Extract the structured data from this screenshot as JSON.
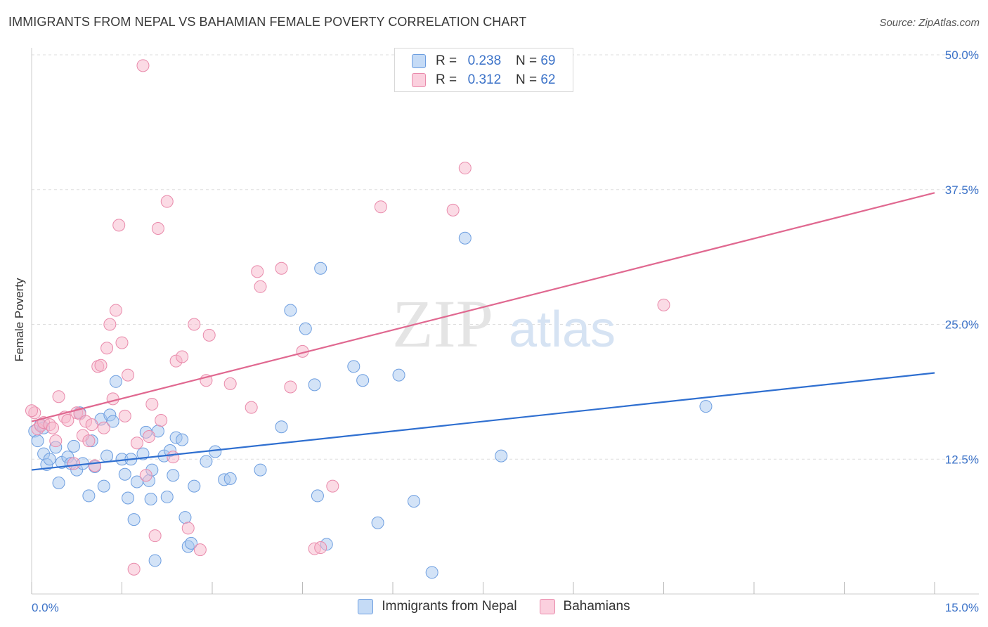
{
  "title": "IMMIGRANTS FROM NEPAL VS BAHAMIAN FEMALE POVERTY CORRELATION CHART",
  "source": "Source: ZipAtlas.com",
  "watermark": {
    "zip": "ZIP",
    "atlas": "atlas"
  },
  "legend_top": [
    {
      "r_label": "R =",
      "r_value": "0.238",
      "n_label": "N =",
      "n_value": "69",
      "color": "#a8c8f0"
    },
    {
      "r_label": "R =",
      "r_value": "0.312",
      "n_label": "N =",
      "n_value": "62",
      "color": "#f7b8cc"
    }
  ],
  "chart_data": {
    "type": "scatter",
    "title": "IMMIGRANTS FROM NEPAL VS BAHAMIAN FEMALE POVERTY CORRELATION CHART",
    "xlabel": "",
    "ylabel": "Female Poverty",
    "xlim": [
      0,
      15
    ],
    "ylim": [
      0,
      50
    ],
    "x_tick_labels": [
      "0.0%",
      "15.0%"
    ],
    "y_ticks": [
      12.5,
      25.0,
      37.5,
      50.0
    ],
    "y_tick_labels": [
      "12.5%",
      "25.0%",
      "37.5%",
      "50.0%"
    ],
    "grid": true,
    "series": [
      {
        "name": "Immigrants from Nepal",
        "color": "#a8c8f0",
        "stroke": "#6d9ee0",
        "line_color": "#2f6fd0",
        "trend": [
          [
            0,
            11.5
          ],
          [
            15,
            20.5
          ]
        ],
        "points": [
          [
            0.05,
            15.1
          ],
          [
            0.1,
            14.2
          ],
          [
            0.15,
            15.7
          ],
          [
            0.2,
            15.4
          ],
          [
            0.2,
            13.0
          ],
          [
            0.25,
            12.0
          ],
          [
            0.3,
            12.5
          ],
          [
            0.4,
            13.6
          ],
          [
            0.45,
            10.3
          ],
          [
            0.5,
            12.2
          ],
          [
            0.6,
            12.7
          ],
          [
            0.65,
            12.1
          ],
          [
            0.7,
            13.7
          ],
          [
            0.75,
            11.5
          ],
          [
            0.8,
            16.8
          ],
          [
            0.85,
            12.1
          ],
          [
            0.95,
            9.1
          ],
          [
            1.0,
            14.2
          ],
          [
            1.05,
            11.8
          ],
          [
            1.15,
            16.2
          ],
          [
            1.2,
            10.0
          ],
          [
            1.25,
            12.8
          ],
          [
            1.3,
            16.6
          ],
          [
            1.35,
            16.0
          ],
          [
            1.4,
            19.7
          ],
          [
            1.5,
            12.5
          ],
          [
            1.55,
            11.1
          ],
          [
            1.6,
            8.9
          ],
          [
            1.65,
            12.5
          ],
          [
            1.7,
            6.9
          ],
          [
            1.75,
            10.4
          ],
          [
            1.85,
            13.0
          ],
          [
            1.9,
            15.0
          ],
          [
            1.95,
            10.5
          ],
          [
            1.98,
            8.8
          ],
          [
            2.0,
            11.5
          ],
          [
            2.05,
            3.1
          ],
          [
            2.1,
            15.1
          ],
          [
            2.2,
            12.8
          ],
          [
            2.25,
            9.0
          ],
          [
            2.3,
            13.3
          ],
          [
            2.35,
            11.0
          ],
          [
            2.4,
            14.5
          ],
          [
            2.5,
            14.3
          ],
          [
            2.55,
            7.1
          ],
          [
            2.6,
            4.4
          ],
          [
            2.65,
            4.7
          ],
          [
            2.7,
            10.0
          ],
          [
            2.9,
            12.3
          ],
          [
            3.05,
            13.2
          ],
          [
            3.2,
            10.6
          ],
          [
            3.3,
            10.7
          ],
          [
            3.8,
            11.5
          ],
          [
            4.15,
            15.5
          ],
          [
            4.3,
            26.3
          ],
          [
            4.55,
            24.6
          ],
          [
            4.7,
            19.4
          ],
          [
            4.75,
            9.1
          ],
          [
            4.8,
            30.2
          ],
          [
            4.9,
            4.6
          ],
          [
            5.35,
            21.1
          ],
          [
            5.5,
            19.8
          ],
          [
            5.75,
            6.6
          ],
          [
            6.1,
            20.3
          ],
          [
            6.35,
            8.6
          ],
          [
            6.65,
            2.0
          ],
          [
            7.2,
            33.0
          ],
          [
            7.8,
            12.8
          ],
          [
            11.2,
            17.4
          ]
        ]
      },
      {
        "name": "Bahamians",
        "color": "#f7b8cc",
        "stroke": "#e98aab",
        "line_color": "#e06890",
        "trend": [
          [
            0,
            16.0
          ],
          [
            15,
            37.2
          ]
        ],
        "points": [
          [
            0.05,
            16.8
          ],
          [
            0.1,
            15.3
          ],
          [
            0.15,
            15.6
          ],
          [
            0.2,
            15.9
          ],
          [
            0.3,
            15.7
          ],
          [
            0.35,
            15.4
          ],
          [
            0.4,
            14.2
          ],
          [
            0.45,
            18.3
          ],
          [
            0.55,
            16.4
          ],
          [
            0.6,
            16.1
          ],
          [
            0.7,
            12.1
          ],
          [
            0.75,
            16.8
          ],
          [
            0.8,
            16.7
          ],
          [
            0.85,
            14.7
          ],
          [
            0.9,
            16.0
          ],
          [
            0.95,
            14.2
          ],
          [
            1.0,
            15.7
          ],
          [
            1.05,
            11.9
          ],
          [
            1.1,
            21.1
          ],
          [
            1.15,
            21.2
          ],
          [
            1.2,
            15.4
          ],
          [
            1.25,
            22.8
          ],
          [
            1.3,
            25.0
          ],
          [
            1.35,
            18.1
          ],
          [
            1.4,
            26.3
          ],
          [
            1.45,
            34.2
          ],
          [
            1.5,
            23.3
          ],
          [
            1.55,
            16.5
          ],
          [
            1.6,
            20.3
          ],
          [
            1.7,
            2.3
          ],
          [
            1.75,
            14.0
          ],
          [
            1.85,
            49.0
          ],
          [
            1.9,
            11.0
          ],
          [
            1.95,
            14.6
          ],
          [
            2.0,
            17.6
          ],
          [
            2.05,
            5.4
          ],
          [
            2.1,
            33.9
          ],
          [
            2.15,
            16.1
          ],
          [
            2.25,
            36.4
          ],
          [
            2.35,
            12.7
          ],
          [
            2.4,
            21.6
          ],
          [
            2.5,
            22.0
          ],
          [
            2.6,
            6.1
          ],
          [
            2.7,
            25.0
          ],
          [
            2.8,
            4.1
          ],
          [
            2.9,
            19.8
          ],
          [
            2.95,
            24.0
          ],
          [
            3.3,
            19.5
          ],
          [
            3.65,
            17.3
          ],
          [
            3.75,
            29.9
          ],
          [
            3.8,
            28.5
          ],
          [
            4.15,
            30.2
          ],
          [
            4.3,
            19.2
          ],
          [
            4.5,
            22.5
          ],
          [
            4.7,
            4.2
          ],
          [
            4.8,
            4.3
          ],
          [
            5.0,
            10.0
          ],
          [
            5.8,
            35.9
          ],
          [
            7.0,
            35.6
          ],
          [
            7.2,
            39.5
          ],
          [
            10.5,
            26.8
          ],
          [
            0.0,
            17.0
          ]
        ]
      }
    ]
  }
}
